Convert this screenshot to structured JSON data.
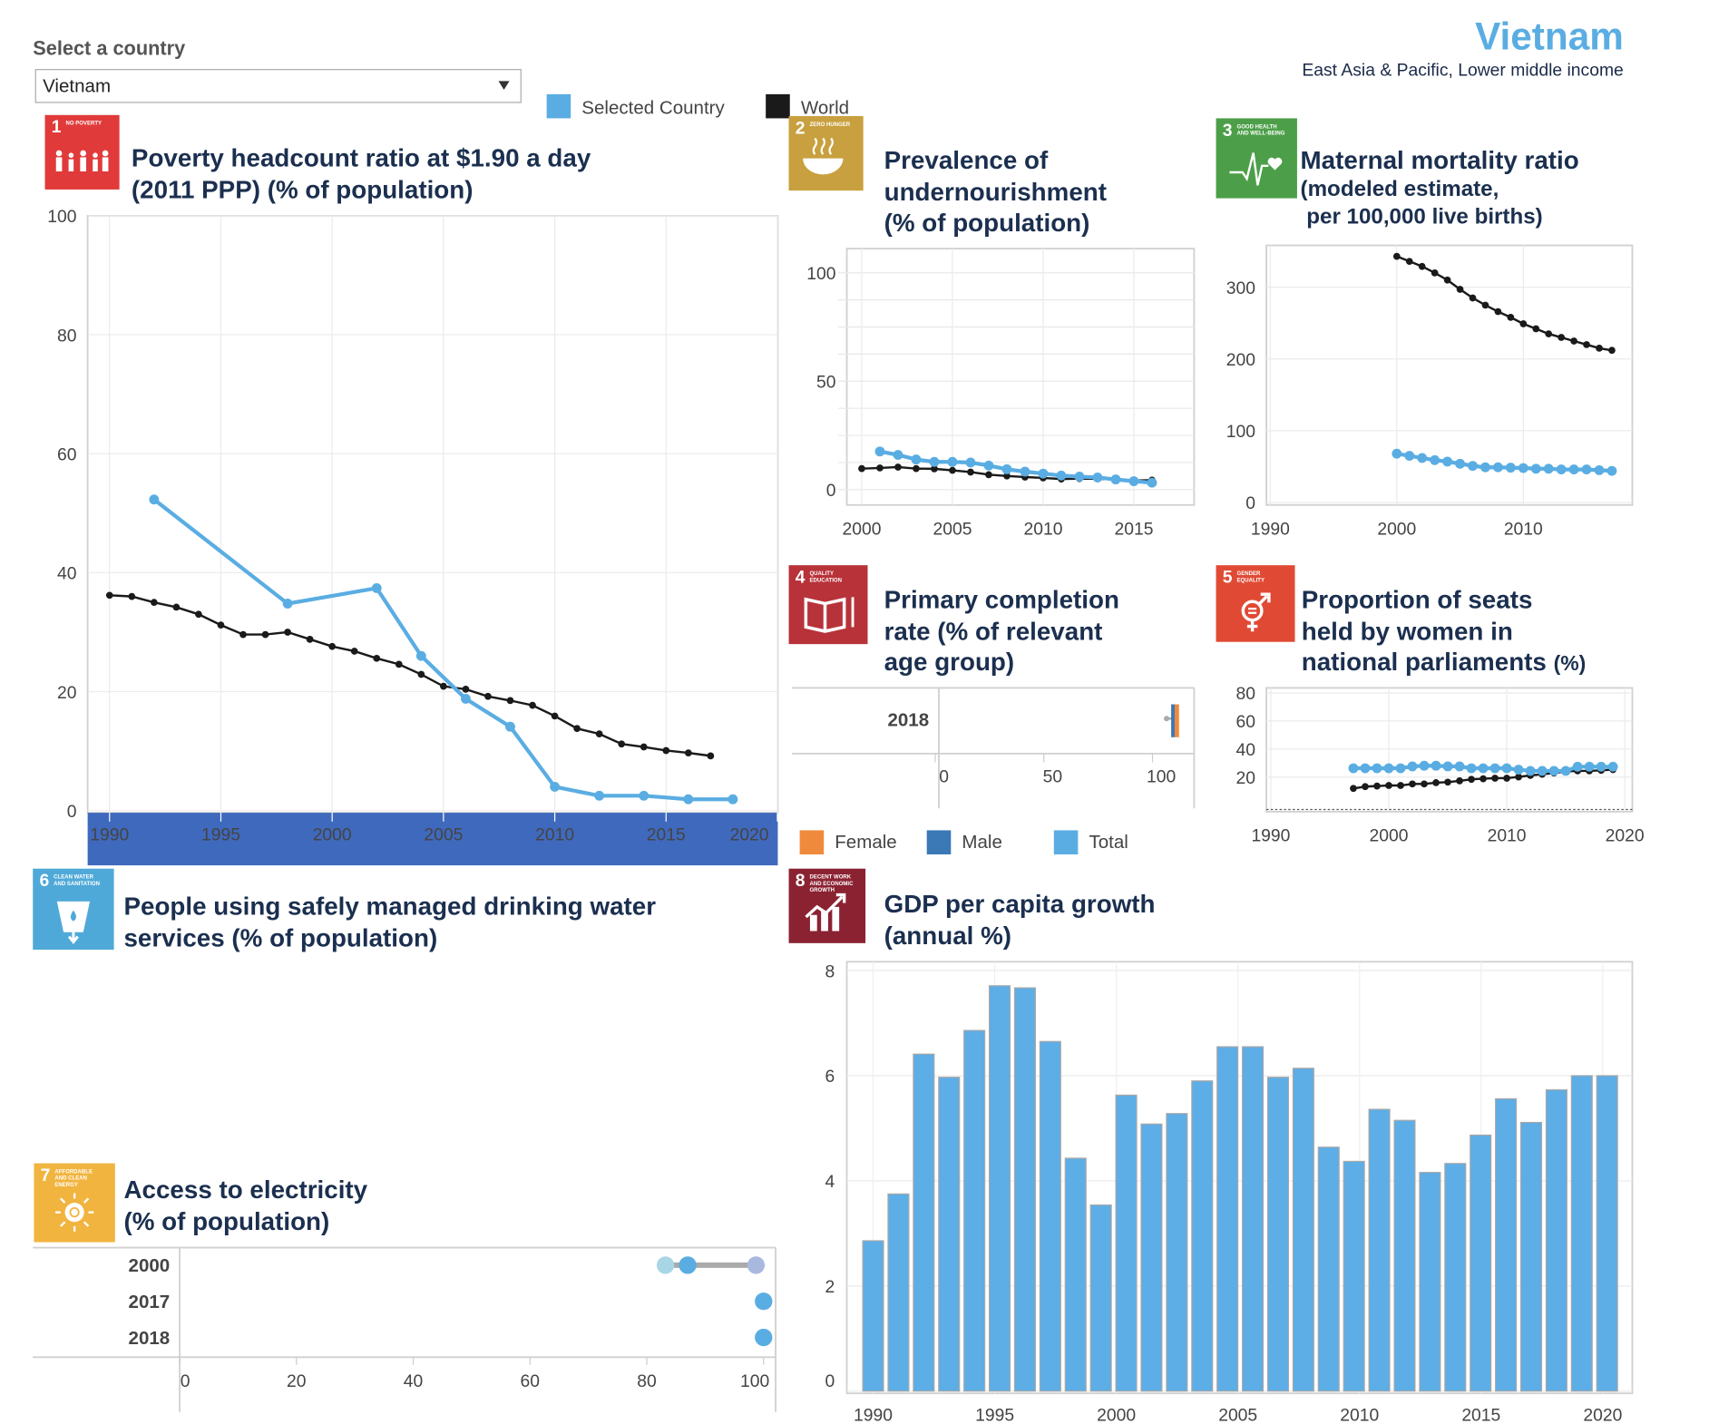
{
  "selector": {
    "label": "Select a country",
    "value": "Vietnam"
  },
  "legend": [
    {
      "label": "Selected Country",
      "color": "#5aade2"
    },
    {
      "label": "World",
      "color": "#1a1a1a"
    }
  ],
  "header": {
    "country": "Vietnam",
    "subtitle": "East Asia & Pacific, Lower middle income"
  },
  "tiles": [
    {
      "num": "1",
      "caption": "NO POVERTY",
      "color": "#e03a3a",
      "icon": "family-icon"
    },
    {
      "num": "2",
      "caption": "ZERO HUNGER",
      "color": "#c9a03f",
      "icon": "bowl-icon"
    },
    {
      "num": "3",
      "caption": "GOOD HEALTH AND WELL-BEING",
      "color": "#4c9f48",
      "icon": "heartbeat-icon"
    },
    {
      "num": "4",
      "caption": "QUALITY EDUCATION",
      "color": "#b8323a",
      "icon": "book-icon"
    },
    {
      "num": "5",
      "caption": "GENDER EQUALITY",
      "color": "#e04a35",
      "icon": "gender-equality-icon"
    },
    {
      "num": "6",
      "caption": "CLEAN WATER AND SANITATION",
      "color": "#4fa9d8",
      "icon": "water-glass-icon"
    },
    {
      "num": "7",
      "caption": "AFFORDABLE AND CLEAN ENERGY",
      "color": "#f1b43f",
      "icon": "sun-power-icon"
    },
    {
      "num": "8",
      "caption": "DECENT WORK AND ECONOMIC GROWTH",
      "color": "#8b2232",
      "icon": "growth-chart-icon"
    }
  ],
  "panels": {
    "water": {
      "title_1": "People using safely managed drinking water",
      "title_2": "services (% of population)"
    }
  },
  "chart_data": [
    {
      "id": "poverty",
      "type": "line",
      "title_1": "Poverty headcount ratio at $1.90 a day",
      "title_2": "(2011 PPP) (% of population)",
      "x_ticks": [
        1990,
        1995,
        2000,
        2005,
        2010,
        2015,
        2020
      ],
      "y_ticks": [
        0,
        20,
        40,
        60,
        80,
        100
      ],
      "ylim": [
        0,
        100
      ],
      "grid": true,
      "series": [
        {
          "name": "Selected Country",
          "color": "#5aade2",
          "points": [
            [
              1992,
              52.3
            ],
            [
              1998,
              34.8
            ],
            [
              2002,
              37.4
            ],
            [
              2004,
              26.0
            ],
            [
              2006,
              18.8
            ],
            [
              2008,
              14.1
            ],
            [
              2010,
              4.0
            ],
            [
              2012,
              2.5
            ],
            [
              2014,
              2.5
            ],
            [
              2016,
              1.9
            ],
            [
              2018,
              1.9
            ]
          ]
        },
        {
          "name": "World",
          "color": "#1a1a1a",
          "points": [
            [
              1990,
              36.2
            ],
            [
              1991,
              36.0
            ],
            [
              1992,
              35.0
            ],
            [
              1993,
              34.2
            ],
            [
              1994,
              33.0
            ],
            [
              1995,
              31.2
            ],
            [
              1996,
              29.6
            ],
            [
              1997,
              29.6
            ],
            [
              1998,
              30.0
            ],
            [
              1999,
              28.8
            ],
            [
              2000,
              27.6
            ],
            [
              2001,
              26.8
            ],
            [
              2002,
              25.6
            ],
            [
              2003,
              24.6
            ],
            [
              2004,
              22.9
            ],
            [
              2005,
              20.9
            ],
            [
              2006,
              20.4
            ],
            [
              2007,
              19.2
            ],
            [
              2008,
              18.5
            ],
            [
              2009,
              17.7
            ],
            [
              2010,
              15.9
            ],
            [
              2011,
              13.8
            ],
            [
              2012,
              12.9
            ],
            [
              2013,
              11.2
            ],
            [
              2014,
              10.7
            ],
            [
              2015,
              10.1
            ],
            [
              2016,
              9.7
            ],
            [
              2017,
              9.2
            ]
          ]
        }
      ]
    },
    {
      "id": "undernourishment",
      "type": "line",
      "title_1": "Prevalence of",
      "title_2": "undernourishment",
      "title_3": "(% of population)",
      "x_ticks": [
        2000,
        2005,
        2010,
        2015
      ],
      "y_ticks": [
        0,
        50,
        100
      ],
      "ylim": [
        0,
        100
      ],
      "grid": true,
      "series": [
        {
          "name": "Selected Country",
          "color": "#5aade2",
          "points": [
            [
              2001,
              17.6
            ],
            [
              2002,
              16.0
            ],
            [
              2003,
              13.9
            ],
            [
              2004,
              12.8
            ],
            [
              2005,
              12.8
            ],
            [
              2006,
              12.5
            ],
            [
              2007,
              11.1
            ],
            [
              2008,
              9.4
            ],
            [
              2009,
              8.3
            ],
            [
              2010,
              7.4
            ],
            [
              2011,
              6.5
            ],
            [
              2012,
              6.0
            ],
            [
              2013,
              5.6
            ],
            [
              2014,
              4.7
            ],
            [
              2015,
              3.9
            ],
            [
              2016,
              3.2
            ]
          ]
        },
        {
          "name": "World",
          "color": "#1a1a1a",
          "points": [
            [
              2000,
              9.7
            ],
            [
              2001,
              10.0
            ],
            [
              2002,
              10.4
            ],
            [
              2003,
              9.7
            ],
            [
              2004,
              9.6
            ],
            [
              2005,
              8.9
            ],
            [
              2006,
              8.1
            ],
            [
              2007,
              6.9
            ],
            [
              2008,
              6.3
            ],
            [
              2009,
              5.8
            ],
            [
              2010,
              5.4
            ],
            [
              2011,
              4.9
            ],
            [
              2012,
              5.1
            ],
            [
              2013,
              5.0
            ],
            [
              2014,
              4.7
            ],
            [
              2015,
              4.2
            ],
            [
              2016,
              4.4
            ]
          ]
        }
      ]
    },
    {
      "id": "maternal",
      "type": "line",
      "title_1": "Maternal mortality ratio",
      "title_2": "(modeled estimate,",
      "title_3": " per 100,000 live births)",
      "x_ticks": [
        1990,
        2000,
        2010
      ],
      "y_ticks": [
        0,
        100,
        200,
        300
      ],
      "grid": true,
      "series": [
        {
          "name": "Selected Country",
          "color": "#5aade2",
          "points": [
            [
              2000,
              68
            ],
            [
              2001,
              65
            ],
            [
              2002,
              62
            ],
            [
              2003,
              59
            ],
            [
              2004,
              57
            ],
            [
              2005,
              54
            ],
            [
              2006,
              51
            ],
            [
              2007,
              49
            ],
            [
              2008,
              49
            ],
            [
              2009,
              48.5
            ],
            [
              2010,
              48
            ],
            [
              2011,
              47
            ],
            [
              2012,
              47
            ],
            [
              2013,
              46
            ],
            [
              2014,
              46
            ],
            [
              2015,
              46
            ],
            [
              2016,
              45
            ],
            [
              2017,
              44
            ]
          ]
        },
        {
          "name": "World",
          "color": "#1a1a1a",
          "points": [
            [
              2000,
              343
            ],
            [
              2001,
              336
            ],
            [
              2002,
              329
            ],
            [
              2003,
              320
            ],
            [
              2004,
              310
            ],
            [
              2005,
              297
            ],
            [
              2006,
              285
            ],
            [
              2007,
              275
            ],
            [
              2008,
              266
            ],
            [
              2009,
              258
            ],
            [
              2010,
              249
            ],
            [
              2011,
              242
            ],
            [
              2012,
              235
            ],
            [
              2013,
              230
            ],
            [
              2014,
              225
            ],
            [
              2015,
              220
            ],
            [
              2016,
              215
            ],
            [
              2017,
              212
            ]
          ]
        }
      ]
    },
    {
      "id": "primary",
      "type": "bar",
      "title_1": "Primary completion",
      "title_2": "rate (% of relevant",
      "title_3": "age group)",
      "categories": [
        "2018"
      ],
      "x_ticks": [
        0,
        50,
        100
      ],
      "series": [
        {
          "name": "Female",
          "color": "#ef8a3c",
          "values": [
            111.2
          ]
        },
        {
          "name": "Male",
          "color": "#3b78b6",
          "values": [
            109.6
          ]
        },
        {
          "name": "Total",
          "color": "#5aade2",
          "values": [
            106.5
          ]
        }
      ]
    },
    {
      "id": "parliament",
      "type": "line",
      "title_1": "Proportion of seats",
      "title_2": "held by women in",
      "title_3": "national parliaments",
      "title_unit": "(%)",
      "x_ticks": [
        1990,
        2000,
        2010,
        2020
      ],
      "y_ticks": [
        20,
        40,
        60,
        80
      ],
      "grid": true,
      "series": [
        {
          "name": "Selected Country",
          "color": "#5aade2",
          "points": [
            [
              1997,
              26.3
            ],
            [
              1998,
              26.3
            ],
            [
              1999,
              26.3
            ],
            [
              2000,
              26.3
            ],
            [
              2001,
              26.3
            ],
            [
              2002,
              27.6
            ],
            [
              2003,
              28.1
            ],
            [
              2004,
              28.1
            ],
            [
              2005,
              27.6
            ],
            [
              2006,
              27.6
            ],
            [
              2007,
              26.3
            ],
            [
              2008,
              26.3
            ],
            [
              2009,
              26.3
            ],
            [
              2010,
              26.3
            ],
            [
              2011,
              25.3
            ],
            [
              2012,
              24.4
            ],
            [
              2013,
              24.4
            ],
            [
              2014,
              24.4
            ],
            [
              2015,
              24.4
            ],
            [
              2016,
              27.4
            ],
            [
              2017,
              27.4
            ],
            [
              2018,
              27.4
            ],
            [
              2019,
              27.4
            ]
          ]
        },
        {
          "name": "World",
          "color": "#1a1a1a",
          "points": [
            [
              1997,
              11.9
            ],
            [
              1998,
              13.2
            ],
            [
              1999,
              13.6
            ],
            [
              2000,
              14.0
            ],
            [
              2001,
              14.0
            ],
            [
              2002,
              15.1
            ],
            [
              2003,
              15.1
            ],
            [
              2004,
              16.0
            ],
            [
              2005,
              16.4
            ],
            [
              2006,
              17.3
            ],
            [
              2007,
              18.4
            ],
            [
              2008,
              18.8
            ],
            [
              2009,
              19.2
            ],
            [
              2010,
              19.2
            ],
            [
              2011,
              20.1
            ],
            [
              2012,
              21.2
            ],
            [
              2013,
              22.0
            ],
            [
              2014,
              22.9
            ],
            [
              2015,
              24.0
            ],
            [
              2016,
              24.4
            ],
            [
              2017,
              24.4
            ],
            [
              2018,
              24.8
            ],
            [
              2019,
              25.3
            ]
          ]
        }
      ]
    },
    {
      "id": "electricity",
      "type": "scatter",
      "title_1": "Access to electricity",
      "title_2": "(% of population)",
      "x_ticks": [
        0,
        20,
        40,
        60,
        80,
        100
      ],
      "point_colors": [
        "#a9d6e5",
        "#5aade2",
        "#a9b8de"
      ],
      "rows": [
        {
          "year": "2000",
          "values": [
            83.2,
            87.0,
            98.7
          ]
        },
        {
          "year": "2017",
          "values": [
            100
          ]
        },
        {
          "year": "2018",
          "values": [
            100
          ]
        }
      ]
    },
    {
      "id": "gdp",
      "type": "bar",
      "title_1": "GDP per capita growth",
      "title_2": "(annual %)",
      "x_ticks": [
        1990,
        1995,
        2000,
        2005,
        2010,
        2015,
        2020
      ],
      "y_ticks": [
        0,
        2,
        4,
        6,
        8
      ],
      "ylim": [
        0,
        8
      ],
      "color": "#5dade6",
      "categories": [
        1990,
        1991,
        1992,
        1993,
        1994,
        1995,
        1996,
        1997,
        1998,
        1999,
        2000,
        2001,
        2002,
        2003,
        2004,
        2005,
        2006,
        2007,
        2008,
        2009,
        2010,
        2011,
        2012,
        2013,
        2014,
        2015,
        2016,
        2017,
        2018,
        2019
      ],
      "values": [
        2.86,
        3.75,
        6.41,
        5.97,
        6.86,
        7.71,
        7.67,
        6.65,
        4.43,
        3.54,
        5.63,
        5.08,
        5.28,
        5.9,
        6.55,
        6.55,
        5.97,
        6.14,
        4.64,
        4.37,
        5.36,
        5.15,
        4.16,
        4.33,
        4.87,
        5.56,
        5.11,
        5.73,
        6.0,
        6.0
      ]
    }
  ]
}
